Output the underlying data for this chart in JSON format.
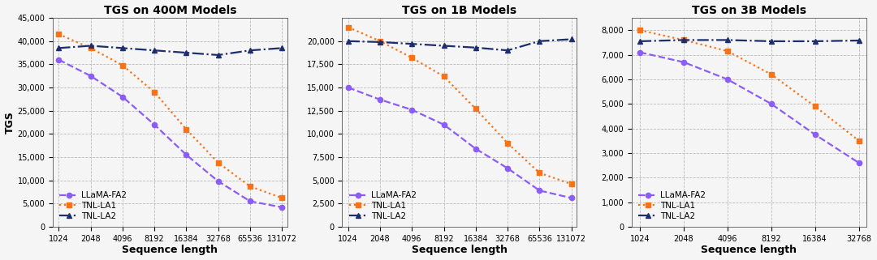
{
  "plots": [
    {
      "title": "TGS on 400M Models",
      "x_ticks": [
        1024,
        2048,
        4096,
        8192,
        16384,
        32768,
        65536,
        131072
      ],
      "x_tick_labels": [
        "1024",
        "2048",
        "4096",
        "8192",
        "16384",
        "32768",
        "65536",
        "131072"
      ],
      "ylim": [
        0,
        45000
      ],
      "y_ticks": [
        0,
        5000,
        10000,
        15000,
        20000,
        25000,
        30000,
        35000,
        40000,
        45000
      ],
      "series": {
        "LLaMA-FA2": {
          "x": [
            1024,
            2048,
            4096,
            8192,
            16384,
            32768,
            65536,
            131072
          ],
          "y": [
            36000,
            32500,
            28000,
            22000,
            15500,
            9800,
            5500,
            4200
          ]
        },
        "TNL-LA1": {
          "x": [
            1024,
            2048,
            4096,
            8192,
            16384,
            32768,
            65536,
            131072
          ],
          "y": [
            41500,
            38500,
            34800,
            29000,
            21000,
            13800,
            8700,
            6200
          ]
        },
        "TNL-LA2": {
          "x": [
            1024,
            2048,
            4096,
            8192,
            16384,
            32768,
            65536,
            131072
          ],
          "y": [
            38500,
            39000,
            38500,
            38000,
            37500,
            37000,
            38000,
            38500
          ]
        }
      }
    },
    {
      "title": "TGS on 1B Models",
      "x_ticks": [
        1024,
        2048,
        4096,
        8192,
        16384,
        32768,
        65536,
        131072
      ],
      "x_tick_labels": [
        "1024",
        "2048",
        "4096",
        "8192",
        "16384",
        "32768",
        "65536",
        "131072"
      ],
      "ylim": [
        0,
        22500
      ],
      "y_ticks": [
        0,
        2500,
        5000,
        7500,
        10000,
        12500,
        15000,
        17500,
        20000
      ],
      "series": {
        "LLaMA-FA2": {
          "x": [
            1024,
            2048,
            4096,
            8192,
            16384,
            32768,
            65536,
            131072
          ],
          "y": [
            15000,
            13700,
            12600,
            11000,
            8400,
            6300,
            3900,
            3100
          ]
        },
        "TNL-LA1": {
          "x": [
            1024,
            2048,
            4096,
            8192,
            16384,
            32768,
            65536,
            131072
          ],
          "y": [
            21500,
            20000,
            18200,
            16200,
            12700,
            9000,
            5800,
            4600
          ]
        },
        "TNL-LA2": {
          "x": [
            1024,
            2048,
            4096,
            8192,
            16384,
            32768,
            65536,
            131072
          ],
          "y": [
            20000,
            19900,
            19700,
            19500,
            19300,
            19000,
            20000,
            20200
          ]
        }
      }
    },
    {
      "title": "TGS on 3B Models",
      "x_ticks": [
        1024,
        2048,
        4096,
        8192,
        16384,
        32768
      ],
      "x_tick_labels": [
        "1024",
        "2048",
        "4096",
        "8192",
        "16384",
        "32768"
      ],
      "ylim": [
        0,
        8500
      ],
      "y_ticks": [
        0,
        1000,
        2000,
        3000,
        4000,
        5000,
        6000,
        7000,
        8000
      ],
      "series": {
        "LLaMA-FA2": {
          "x": [
            1024,
            2048,
            4096,
            8192,
            16384,
            32768
          ],
          "y": [
            7100,
            6700,
            6000,
            5000,
            3750,
            2600
          ]
        },
        "TNL-LA1": {
          "x": [
            1024,
            2048,
            4096,
            8192,
            16384,
            32768
          ],
          "y": [
            8000,
            7600,
            7150,
            6200,
            4900,
            3500
          ]
        },
        "TNL-LA2": {
          "x": [
            1024,
            2048,
            4096,
            8192,
            16384,
            32768
          ],
          "y": [
            7550,
            7600,
            7600,
            7550,
            7550,
            7580
          ]
        }
      }
    }
  ],
  "colors": {
    "LLaMA-FA2": "#8B5CF6",
    "TNL-LA1": "#F97316",
    "TNL-LA2": "#1e2d6b"
  },
  "line_styles": {
    "LLaMA-FA2": "--",
    "TNL-LA1": ":",
    "TNL-LA2": "-."
  },
  "markers": {
    "LLaMA-FA2": "o",
    "TNL-LA1": "s",
    "TNL-LA2": "^"
  },
  "xlabel": "Sequence length",
  "ylabel": "TGS",
  "background_color": "#f5f5f5",
  "grid_color": "#bbbbbb"
}
